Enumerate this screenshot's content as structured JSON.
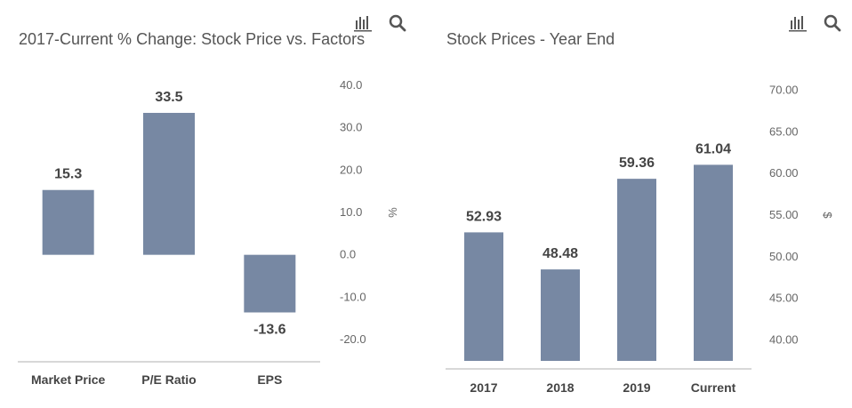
{
  "chart_data": [
    {
      "type": "bar",
      "title": "2017-Current % Change: Stock Price vs. Factors",
      "categories": [
        "Market Price",
        "P/E Ratio",
        "EPS"
      ],
      "values": [
        15.3,
        33.5,
        -13.6
      ],
      "value_labels": [
        "15.3",
        "33.5",
        "-13.6"
      ],
      "ylabel": "%",
      "ylim": [
        -20,
        40
      ],
      "yticks": [
        40,
        30,
        20,
        10,
        0,
        -10,
        -20
      ],
      "ytick_labels": [
        "40.0",
        "30.0",
        "20.0",
        "10.0",
        "0.0",
        "-10.0",
        "-20.0"
      ],
      "y_axis_side": "right",
      "grid": false,
      "bar_color": "#7788a3"
    },
    {
      "type": "bar",
      "title": "Stock Prices - Year End",
      "categories": [
        "2017",
        "2018",
        "2019",
        "Current"
      ],
      "values": [
        52.93,
        48.48,
        59.36,
        61.04
      ],
      "value_labels": [
        "52.93",
        "48.48",
        "59.36",
        "61.04"
      ],
      "ylabel": "$",
      "ylim": [
        37.5,
        72.5
      ],
      "yticks": [
        70,
        65,
        60,
        55,
        50,
        45,
        40
      ],
      "ytick_labels": [
        "70.00",
        "65.00",
        "60.00",
        "55.00",
        "50.00",
        "45.00",
        "40.00"
      ],
      "y_axis_side": "right",
      "grid": false,
      "bar_color": "#7788a3"
    }
  ],
  "toolbar": {
    "icons": [
      "bar-chart-icon",
      "search-icon"
    ]
  }
}
